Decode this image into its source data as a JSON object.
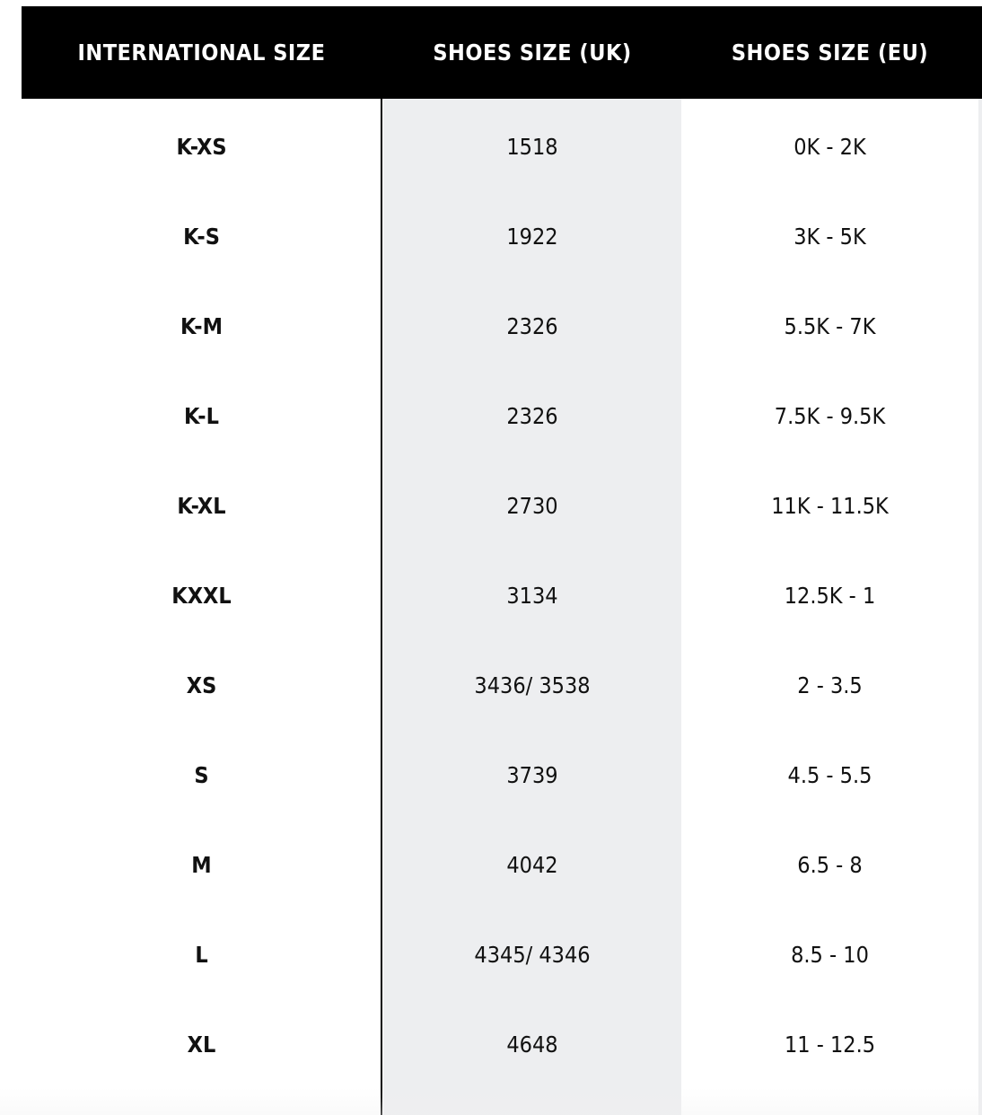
{
  "headers": [
    "INTERNATIONAL SIZE",
    "SHOES SIZE (UK)",
    "SHOES SIZE (EU)"
  ],
  "rows": [
    [
      "K-XS",
      "1518",
      "0K - 2K"
    ],
    [
      "K-S",
      "1922",
      "3K - 5K"
    ],
    [
      "K-M",
      "2326",
      "5.5K - 7K"
    ],
    [
      "K-L",
      "2326",
      "7.5K - 9.5K"
    ],
    [
      "K-XL",
      "2730",
      "11K - 11.5K"
    ],
    [
      "KXXL",
      "3134",
      "12.5K - 1"
    ],
    [
      "XS",
      "3436/ 3538",
      "2 - 3.5"
    ],
    [
      "S",
      "3739",
      "4.5 - 5.5"
    ],
    [
      "M",
      "4042",
      "6.5 - 8"
    ],
    [
      "L",
      "4345/ 4346",
      "8.5 - 10"
    ],
    [
      "XL",
      "4648",
      "11 - 12.5"
    ]
  ],
  "colors": {
    "header_bg": "#000000",
    "header_text": "#ffffff",
    "shaded_column": "#edeef0"
  }
}
